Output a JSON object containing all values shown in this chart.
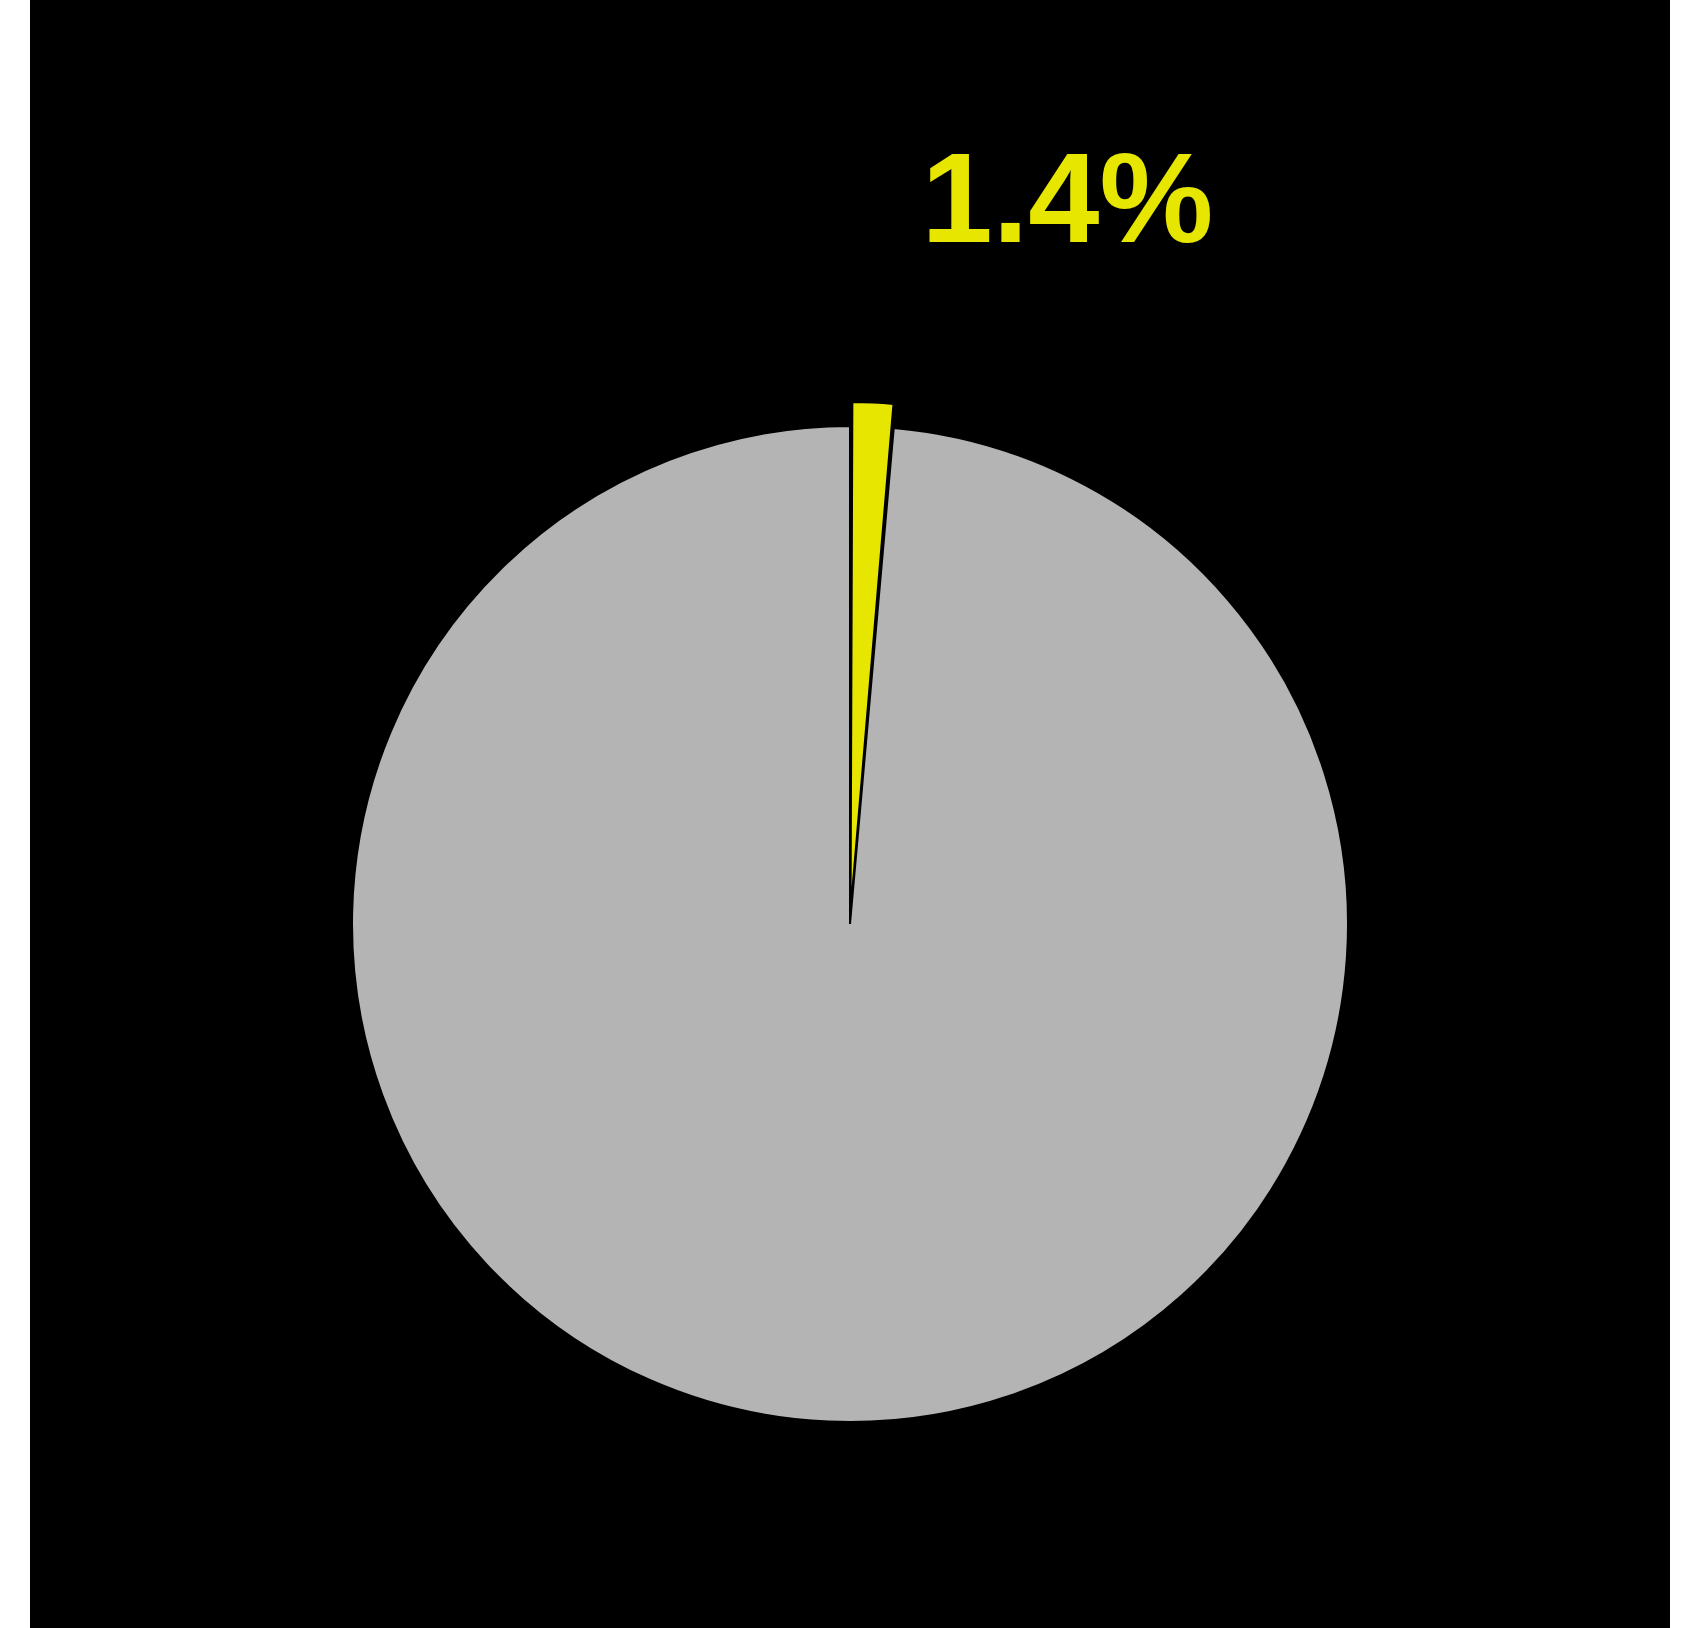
{
  "chart_data": {
    "type": "pie",
    "categories": [
      null,
      null
    ],
    "values": [
      1.4,
      98.6
    ],
    "colors": [
      "#e6e600",
      "#b4b4b4"
    ],
    "value_labels": [
      "1.4%",
      null
    ]
  }
}
